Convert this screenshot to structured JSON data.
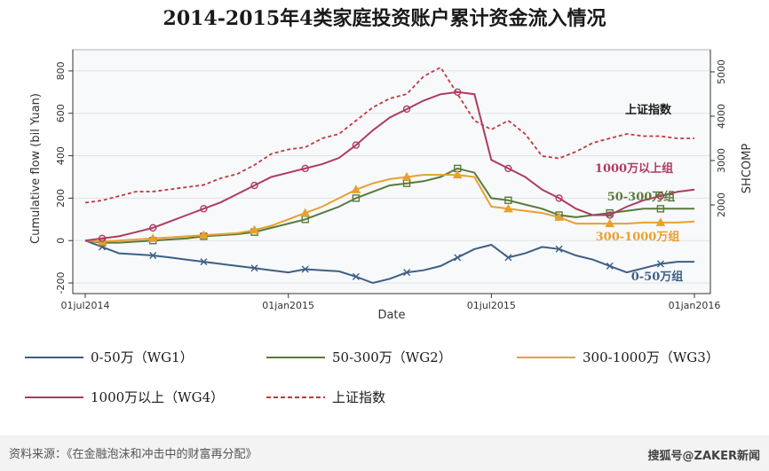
{
  "title": "2014-2015年4类家庭投资账户累计资金流入情况",
  "source": "资料来源：《在金融泡沫和冲击中的财富再分配》",
  "watermark": "搜狐号@ZAKER新闻",
  "chart_data": {
    "type": "line",
    "xlabel": "Date",
    "ylabel": "Cumulative flow (bil Yuan)",
    "y2label": "SHCOMP",
    "x_ticks": [
      "01jul2014",
      "01jan2015",
      "01jul2015",
      "01jan2016"
    ],
    "x_range": [
      0,
      18
    ],
    "ylim": [
      -250,
      900
    ],
    "yticks": [
      -200,
      0,
      200,
      400,
      600,
      800
    ],
    "y2lim": [
      0,
      5500
    ],
    "y2ticks": [
      2000,
      3000,
      4000,
      5000
    ],
    "x_months": [
      0,
      0.5,
      1,
      1.5,
      2,
      2.5,
      3,
      3.5,
      4,
      4.5,
      5,
      5.5,
      6,
      6.5,
      7,
      7.5,
      8,
      8.5,
      9,
      9.5,
      10,
      10.5,
      11,
      11.5,
      12,
      12.5,
      13,
      13.5,
      14,
      14.5,
      15,
      15.5,
      16,
      16.5,
      17,
      17.5,
      18
    ],
    "series": [
      {
        "name": "0-50万（WG1）",
        "label": "0-50万组",
        "color": "#3d5f85",
        "marker": "x",
        "values": [
          0,
          -30,
          -60,
          -65,
          -70,
          -80,
          -90,
          -100,
          -110,
          -120,
          -130,
          -140,
          -150,
          -135,
          -140,
          -145,
          -170,
          -200,
          -180,
          -150,
          -140,
          -120,
          -80,
          -40,
          -20,
          -80,
          -60,
          -30,
          -40,
          -70,
          -90,
          -120,
          -150,
          -130,
          -110,
          -100,
          -100
        ]
      },
      {
        "name": "50-300万（WG2）",
        "label": "50-300万组",
        "color": "#5a7a3a",
        "marker": "square",
        "values": [
          0,
          -10,
          -10,
          -5,
          0,
          5,
          10,
          20,
          25,
          30,
          40,
          60,
          80,
          100,
          130,
          160,
          200,
          230,
          260,
          270,
          280,
          300,
          340,
          320,
          200,
          190,
          170,
          150,
          120,
          110,
          120,
          130,
          140,
          150,
          150,
          150,
          150
        ]
      },
      {
        "name": "300-1000万（WG3）",
        "label": "300-1000万组",
        "color": "#e8a030",
        "marker": "triangle",
        "values": [
          0,
          -5,
          0,
          5,
          10,
          15,
          20,
          25,
          30,
          35,
          50,
          70,
          100,
          130,
          160,
          200,
          240,
          270,
          290,
          300,
          310,
          310,
          310,
          300,
          160,
          150,
          140,
          130,
          110,
          80,
          80,
          80,
          80,
          85,
          85,
          85,
          90
        ]
      },
      {
        "name": "1000万以上（WG4）",
        "label": "1000万以上组",
        "color": "#b03a60",
        "marker": "circle",
        "values": [
          0,
          10,
          20,
          40,
          60,
          90,
          120,
          150,
          180,
          220,
          260,
          300,
          320,
          340,
          360,
          390,
          450,
          520,
          580,
          620,
          660,
          690,
          700,
          690,
          380,
          340,
          300,
          240,
          200,
          150,
          120,
          120,
          160,
          190,
          210,
          230,
          240
        ]
      },
      {
        "name": "上证指数",
        "label": "上证指数",
        "color": "#c0393b",
        "marker": "dashed",
        "axis": "right",
        "values": [
          2050,
          2100,
          2200,
          2300,
          2300,
          2350,
          2400,
          2450,
          2600,
          2700,
          2900,
          3150,
          3250,
          3300,
          3500,
          3600,
          3900,
          4200,
          4400,
          4500,
          4900,
          5100,
          4500,
          3900,
          3700,
          3900,
          3600,
          3100,
          3050,
          3200,
          3400,
          3500,
          3600,
          3550,
          3550,
          3500,
          3500
        ]
      }
    ]
  }
}
